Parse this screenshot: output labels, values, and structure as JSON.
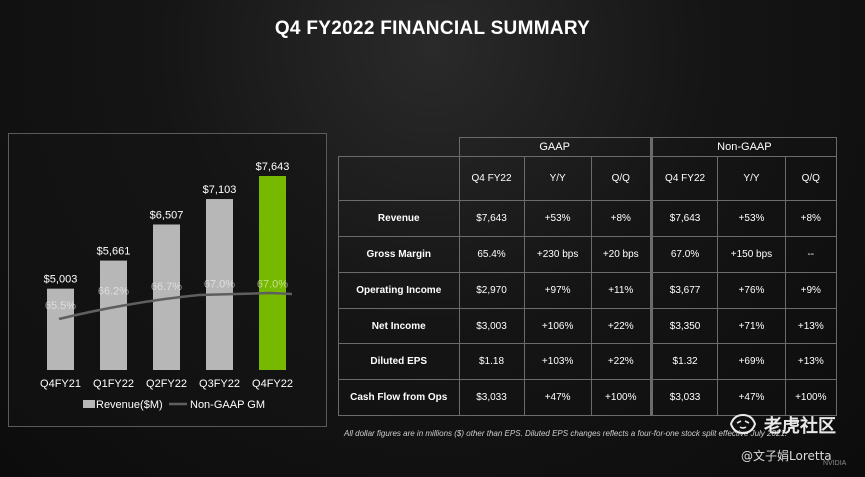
{
  "title": "Q4 FY2022 FINANCIAL SUMMARY",
  "colors": {
    "revenue_bar": "#b7b7b7",
    "highlight_bar": "#76b900",
    "gm_line": "#5f5f5f",
    "background": "#111111"
  },
  "chart_data": {
    "type": "bar",
    "categories": [
      "Q4FY21",
      "Q1FY22",
      "Q2FY22",
      "Q3FY22",
      "Q4FY22"
    ],
    "series": [
      {
        "name": "Revenue($M)",
        "kind": "bar",
        "values": [
          5003,
          5661,
          6507,
          7103,
          7643
        ],
        "labels": [
          "$5,003",
          "$5,661",
          "$6,507",
          "$7,103",
          "$7,643"
        ]
      },
      {
        "name": "Non-GAAP GM",
        "kind": "line",
        "values": [
          65.5,
          66.2,
          66.7,
          67.0,
          67.0
        ],
        "labels": [
          "65.5%",
          "66.2%",
          "66.7%",
          "67.0%",
          "67.0%"
        ]
      }
    ],
    "highlight_category": "Q4FY22",
    "legend_position": "bottom",
    "grid": false
  },
  "table": {
    "groups": [
      "GAAP",
      "Non-GAAP"
    ],
    "columns": [
      "Q4 FY22",
      "Y/Y",
      "Q/Q",
      "Q4 FY22",
      "Y/Y",
      "Q/Q"
    ],
    "rows": [
      {
        "label": "Revenue",
        "cells": [
          "$7,643",
          "+53%",
          "+8%",
          "$7,643",
          "+53%",
          "+8%"
        ]
      },
      {
        "label": "Gross Margin",
        "cells": [
          "65.4%",
          "+230 bps",
          "+20 bps",
          "67.0%",
          "+150 bps",
          "--"
        ]
      },
      {
        "label": "Operating Income",
        "cells": [
          "$2,970",
          "+97%",
          "+11%",
          "$3,677",
          "+76%",
          "+9%"
        ]
      },
      {
        "label": "Net Income",
        "cells": [
          "$3,003",
          "+106%",
          "+22%",
          "$3,350",
          "+71%",
          "+13%"
        ]
      },
      {
        "label": "Diluted EPS",
        "cells": [
          "$1.18",
          "+103%",
          "+22%",
          "$1.32",
          "+69%",
          "+13%"
        ]
      },
      {
        "label": "Cash Flow from Ops",
        "cells": [
          "$3,033",
          "+47%",
          "+100%",
          "$3,033",
          "+47%",
          "+100%"
        ]
      }
    ]
  },
  "footnote": "All dollar figures are in millions ($) other than EPS. Diluted EPS changes reflects a four-for-one stock split effective July 2021.",
  "watermark": {
    "brand": "老虎社区",
    "user": "@文子娟Loretta",
    "logo_icon": "tiger-logo-icon"
  },
  "corner_brand": "NVIDIA"
}
